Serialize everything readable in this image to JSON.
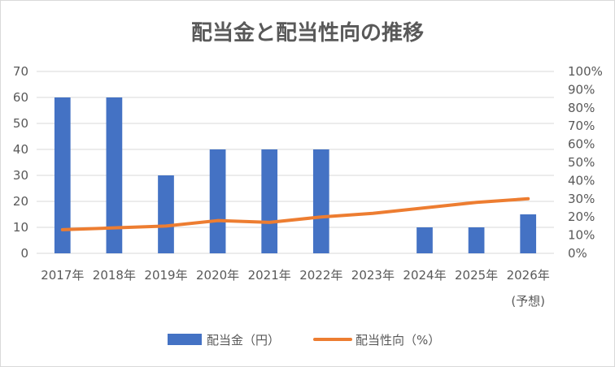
{
  "chart_data": {
    "type": "bar+line",
    "title": "配当金と配当性向の推移",
    "categories": [
      "2017年",
      "2018年",
      "2019年",
      "2020年",
      "2021年",
      "2022年",
      "2023年",
      "2024年",
      "2025年",
      "2026年"
    ],
    "category_sublabels": [
      "",
      "",
      "",
      "",
      "",
      "",
      "",
      "",
      "",
      "(予想)"
    ],
    "series": [
      {
        "name": "配当金（円）",
        "type": "bar",
        "axis": "left",
        "color": "#4472c4",
        "values": [
          60,
          60,
          30,
          40,
          40,
          40,
          null,
          10,
          10,
          15
        ]
      },
      {
        "name": "配当性向（%）",
        "type": "line",
        "axis": "right",
        "color": "#ed7d31",
        "values": [
          13,
          14,
          15,
          18,
          17,
          20,
          22,
          25,
          28,
          30
        ]
      }
    ],
    "y_left": {
      "min": 0,
      "max": 70,
      "step": 10,
      "tick_labels": [
        "0",
        "10",
        "20",
        "30",
        "40",
        "50",
        "60",
        "70"
      ]
    },
    "y_right": {
      "min": 0,
      "max": 100,
      "step": 10,
      "tick_labels": [
        "0%",
        "10%",
        "20%",
        "30%",
        "40%",
        "50%",
        "60%",
        "70%",
        "80%",
        "90%",
        "100%"
      ]
    },
    "grid": true,
    "legend_position": "bottom"
  }
}
